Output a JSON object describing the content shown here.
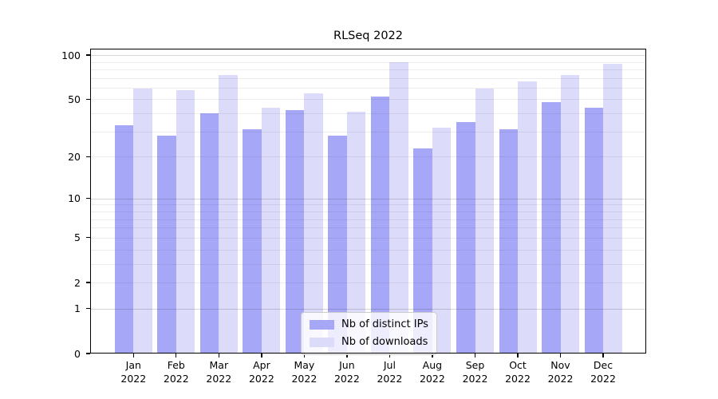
{
  "figure": {
    "background": "#ffffff"
  },
  "chart_data": {
    "type": "bar",
    "title": "RLSeq 2022",
    "categories": [
      "Jan",
      "Feb",
      "Mar",
      "Apr",
      "May",
      "Jun",
      "Jul",
      "Aug",
      "Sep",
      "Oct",
      "Nov",
      "Dec"
    ],
    "x_tick_second_line": "2022",
    "series": [
      {
        "name": "Nb of distinct IPs",
        "color": "#a7a7f8",
        "values": [
          33,
          28,
          40,
          31,
          42,
          28,
          52,
          23,
          35,
          31,
          48,
          44
        ]
      },
      {
        "name": "Nb of downloads",
        "color": "#dcdcfa",
        "values": [
          59,
          58,
          73,
          44,
          55,
          41,
          89,
          32,
          59,
          66,
          73,
          87
        ]
      }
    ],
    "xlabel": "",
    "ylabel": "",
    "y_axis": {
      "scale": "log1p",
      "ticks": [
        0,
        1,
        2,
        5,
        10,
        20,
        50,
        100
      ],
      "ylim": [
        0,
        110.5
      ]
    },
    "grid": {
      "visible": true,
      "major_lines": [
        1,
        10,
        100
      ],
      "minor_lines": [
        2,
        3,
        4,
        5,
        6,
        7,
        8,
        9,
        20,
        30,
        40,
        50,
        60,
        70,
        80,
        90
      ]
    },
    "legend": {
      "position": "lower-center"
    }
  }
}
